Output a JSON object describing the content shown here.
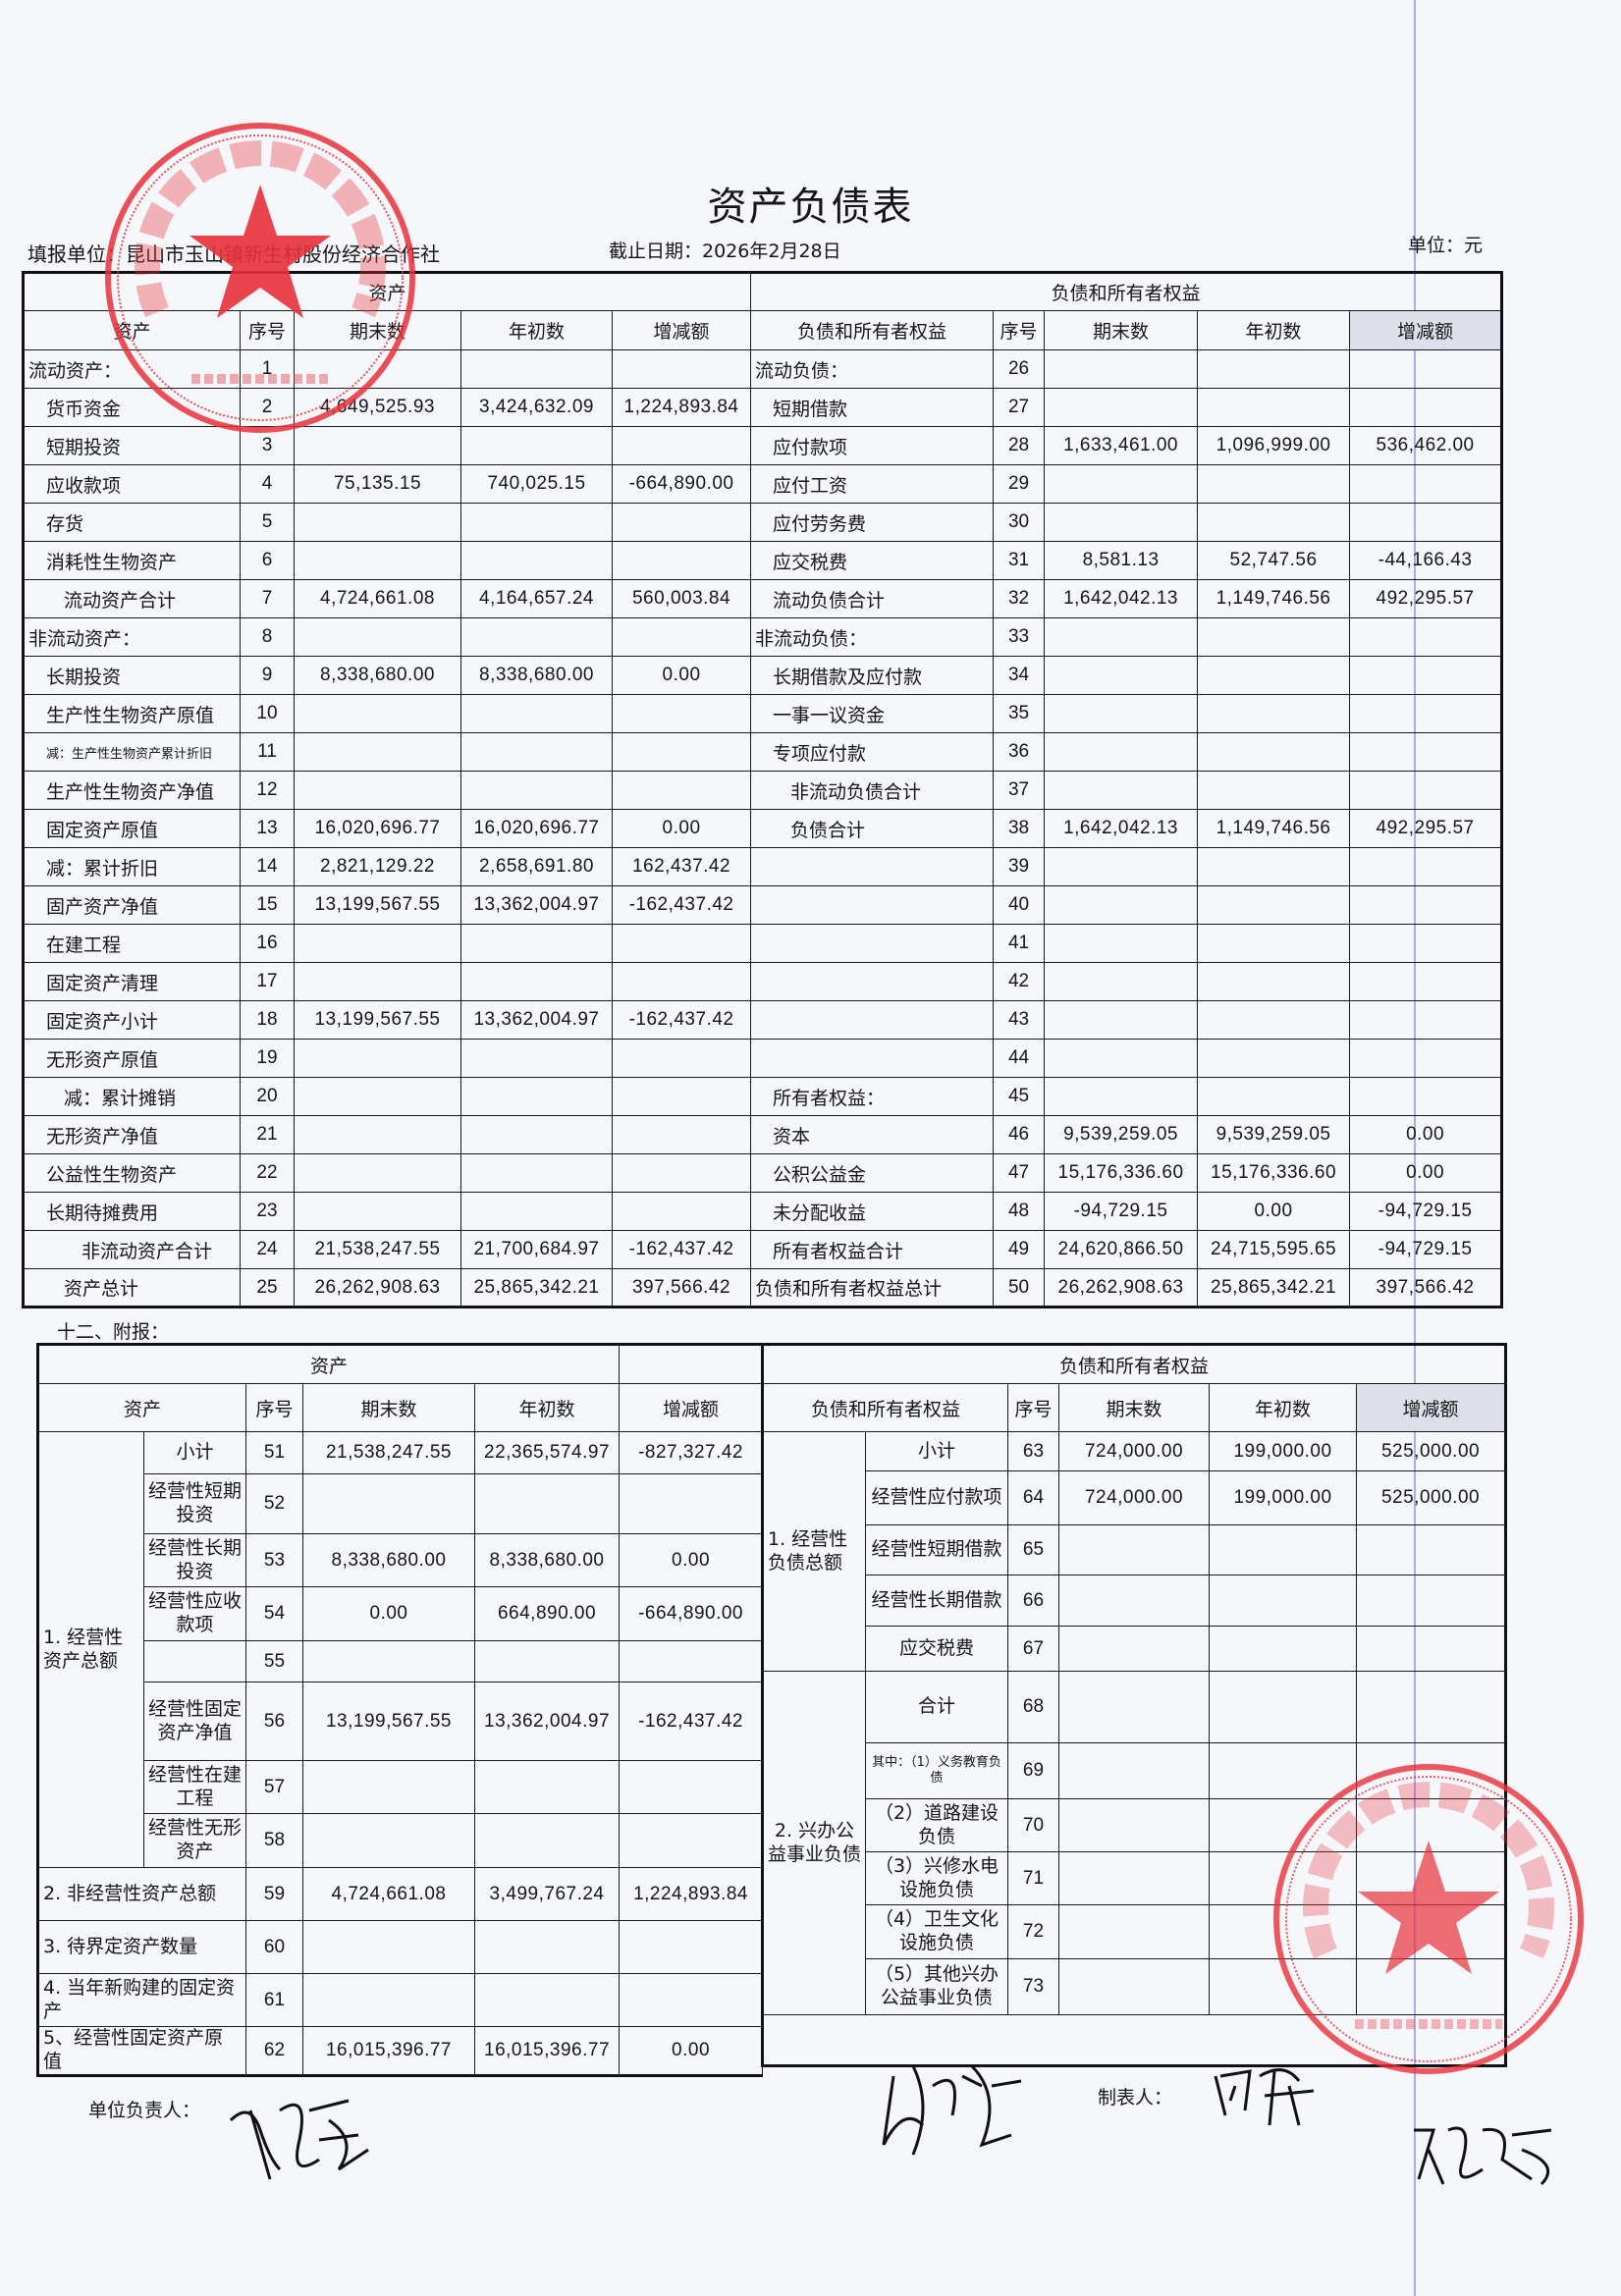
{
  "title": "资产负债表",
  "unit_label": "填报单位：昆山市玉山镇新生村股份经济合作社",
  "date_label": "截止日期：2026年2月28日",
  "currency_label": "单位：元",
  "main": {
    "assets_header": "资产",
    "liab_header": "负债和所有者权益",
    "col_headers": {
      "asset": "资产",
      "seq": "序号",
      "end": "期末数",
      "begin": "年初数",
      "change": "增减额",
      "liab": "负债和所有者权益"
    },
    "rows": [
      {
        "asset": "流动资产：",
        "seq": "1",
        "end": "",
        "begin": "",
        "change": "",
        "liab": "流动负债：",
        "lseq": "26",
        "lend": "",
        "lbegin": "",
        "lchange": ""
      },
      {
        "asset": "货币资金",
        "seq": "2",
        "end": "4,649,525.93",
        "begin": "3,424,632.09",
        "change": "1,224,893.84",
        "liab": "短期借款",
        "lseq": "27",
        "lend": "",
        "lbegin": "",
        "lchange": ""
      },
      {
        "asset": "短期投资",
        "seq": "3",
        "end": "",
        "begin": "",
        "change": "",
        "liab": "应付款项",
        "lseq": "28",
        "lend": "1,633,461.00",
        "lbegin": "1,096,999.00",
        "lchange": "536,462.00"
      },
      {
        "asset": "应收款项",
        "seq": "4",
        "end": "75,135.15",
        "begin": "740,025.15",
        "change": "-664,890.00",
        "liab": "应付工资",
        "lseq": "29",
        "lend": "",
        "lbegin": "",
        "lchange": ""
      },
      {
        "asset": "存货",
        "seq": "5",
        "end": "",
        "begin": "",
        "change": "",
        "liab": "应付劳务费",
        "lseq": "30",
        "lend": "",
        "lbegin": "",
        "lchange": ""
      },
      {
        "asset": "消耗性生物资产",
        "seq": "6",
        "end": "",
        "begin": "",
        "change": "",
        "liab": "应交税费",
        "lseq": "31",
        "lend": "8,581.13",
        "lbegin": "52,747.56",
        "lchange": "-44,166.43"
      },
      {
        "asset": "流动资产合计",
        "seq": "7",
        "end": "4,724,661.08",
        "begin": "4,164,657.24",
        "change": "560,003.84",
        "liab": "流动负债合计",
        "lseq": "32",
        "lend": "1,642,042.13",
        "lbegin": "1,149,746.56",
        "lchange": "492,295.57"
      },
      {
        "asset": "非流动资产：",
        "seq": "8",
        "end": "",
        "begin": "",
        "change": "",
        "liab": "非流动负债：",
        "lseq": "33",
        "lend": "",
        "lbegin": "",
        "lchange": ""
      },
      {
        "asset": "长期投资",
        "seq": "9",
        "end": "8,338,680.00",
        "begin": "8,338,680.00",
        "change": "0.00",
        "liab": "长期借款及应付款",
        "lseq": "34",
        "lend": "",
        "lbegin": "",
        "lchange": ""
      },
      {
        "asset": "生产性生物资产原值",
        "seq": "10",
        "end": "",
        "begin": "",
        "change": "",
        "liab": "一事一议资金",
        "lseq": "35",
        "lend": "",
        "lbegin": "",
        "lchange": ""
      },
      {
        "asset": "减：生产性生物资产累计折旧",
        "seq": "11",
        "end": "",
        "begin": "",
        "change": "",
        "liab": "专项应付款",
        "lseq": "36",
        "lend": "",
        "lbegin": "",
        "lchange": ""
      },
      {
        "asset": "生产性生物资产净值",
        "seq": "12",
        "end": "",
        "begin": "",
        "change": "",
        "liab": "非流动负债合计",
        "lseq": "37",
        "lend": "",
        "lbegin": "",
        "lchange": ""
      },
      {
        "asset": "固定资产原值",
        "seq": "13",
        "end": "16,020,696.77",
        "begin": "16,020,696.77",
        "change": "0.00",
        "liab": "负债合计",
        "lseq": "38",
        "lend": "1,642,042.13",
        "lbegin": "1,149,746.56",
        "lchange": "492,295.57"
      },
      {
        "asset": "减：累计折旧",
        "seq": "14",
        "end": "2,821,129.22",
        "begin": "2,658,691.80",
        "change": "162,437.42",
        "liab": "",
        "lseq": "39",
        "lend": "",
        "lbegin": "",
        "lchange": ""
      },
      {
        "asset": "固产资产净值",
        "seq": "15",
        "end": "13,199,567.55",
        "begin": "13,362,004.97",
        "change": "-162,437.42",
        "liab": "",
        "lseq": "40",
        "lend": "",
        "lbegin": "",
        "lchange": ""
      },
      {
        "asset": "在建工程",
        "seq": "16",
        "end": "",
        "begin": "",
        "change": "",
        "liab": "",
        "lseq": "41",
        "lend": "",
        "lbegin": "",
        "lchange": ""
      },
      {
        "asset": "固定资产清理",
        "seq": "17",
        "end": "",
        "begin": "",
        "change": "",
        "liab": "",
        "lseq": "42",
        "lend": "",
        "lbegin": "",
        "lchange": ""
      },
      {
        "asset": "固定资产小计",
        "seq": "18",
        "end": "13,199,567.55",
        "begin": "13,362,004.97",
        "change": "-162,437.42",
        "liab": "",
        "lseq": "43",
        "lend": "",
        "lbegin": "",
        "lchange": ""
      },
      {
        "asset": "无形资产原值",
        "seq": "19",
        "end": "",
        "begin": "",
        "change": "",
        "liab": "",
        "lseq": "44",
        "lend": "",
        "lbegin": "",
        "lchange": ""
      },
      {
        "asset": "减：累计摊销",
        "seq": "20",
        "end": "",
        "begin": "",
        "change": "",
        "liab": "所有者权益：",
        "lseq": "45",
        "lend": "",
        "lbegin": "",
        "lchange": ""
      },
      {
        "asset": "无形资产净值",
        "seq": "21",
        "end": "",
        "begin": "",
        "change": "",
        "liab": "资本",
        "lseq": "46",
        "lend": "9,539,259.05",
        "lbegin": "9,539,259.05",
        "lchange": "0.00"
      },
      {
        "asset": "公益性生物资产",
        "seq": "22",
        "end": "",
        "begin": "",
        "change": "",
        "liab": "公积公益金",
        "lseq": "47",
        "lend": "15,176,336.60",
        "lbegin": "15,176,336.60",
        "lchange": "0.00"
      },
      {
        "asset": "长期待摊费用",
        "seq": "23",
        "end": "",
        "begin": "",
        "change": "",
        "liab": "未分配收益",
        "lseq": "48",
        "lend": "-94,729.15",
        "lbegin": "0.00",
        "lchange": "-94,729.15"
      },
      {
        "asset": "非流动资产合计",
        "seq": "24",
        "end": "21,538,247.55",
        "begin": "21,700,684.97",
        "change": "-162,437.42",
        "liab": "所有者权益合计",
        "lseq": "49",
        "lend": "24,620,866.50",
        "lbegin": "24,715,595.65",
        "lchange": "-94,729.15"
      },
      {
        "asset": "资产总计",
        "seq": "25",
        "end": "26,262,908.63",
        "begin": "25,865,342.21",
        "change": "397,566.42",
        "liab": "负债和所有者权益总计",
        "lseq": "50",
        "lend": "26,262,908.63",
        "lbegin": "25,865,342.21",
        "lchange": "397,566.42"
      }
    ]
  },
  "annex": {
    "caption": "十二、附报：",
    "assets_header": "资产",
    "liab_header": "负债和所有者权益",
    "col_headers": {
      "asset": "资产",
      "seq": "序号",
      "end": "期末数",
      "begin": "年初数",
      "change": "增减额",
      "liab": "负债和所有者权益"
    },
    "asset_group_1": "1. 经营性资产总额",
    "asset_rows": [
      {
        "label": "小计",
        "seq": "51",
        "end": "21,538,247.55",
        "begin": "22,365,574.97",
        "change": "-827,327.42"
      },
      {
        "label": "经营性短期投资",
        "seq": "52",
        "end": "",
        "begin": "",
        "change": ""
      },
      {
        "label": "经营性长期投资",
        "seq": "53",
        "end": "8,338,680.00",
        "begin": "8,338,680.00",
        "change": "0.00"
      },
      {
        "label": "经营性应收款项",
        "seq": "54",
        "end": "0.00",
        "begin": "664,890.00",
        "change": "-664,890.00"
      },
      {
        "label": "",
        "seq": "55",
        "end": "",
        "begin": "",
        "change": ""
      },
      {
        "label": "经营性固定资产净值",
        "seq": "56",
        "end": "13,199,567.55",
        "begin": "13,362,004.97",
        "change": "-162,437.42"
      },
      {
        "label": "经营性在建工程",
        "seq": "57",
        "end": "",
        "begin": "",
        "change": ""
      },
      {
        "label": "经营性无形资产",
        "seq": "58",
        "end": "",
        "begin": "",
        "change": ""
      },
      {
        "label": "2. 非经营性资产总额",
        "seq": "59",
        "end": "4,724,661.08",
        "begin": "3,499,767.24",
        "change": "1,224,893.84"
      },
      {
        "label": "3. 待界定资产数量",
        "seq": "60",
        "end": "",
        "begin": "",
        "change": ""
      },
      {
        "label": "4. 当年新购建的固定资产",
        "seq": "61",
        "end": "",
        "begin": "",
        "change": ""
      },
      {
        "label": "5、经营性固定资产原值",
        "seq": "62",
        "end": "16,015,396.77",
        "begin": "16,015,396.77",
        "change": "0.00"
      }
    ],
    "liab_group_1": "1. 经营性负债总额",
    "liab_group_2": "2. 兴办公益事业负债",
    "liab_rows": [
      {
        "label": "小计",
        "seq": "63",
        "end": "724,000.00",
        "begin": "199,000.00",
        "change": "525,000.00"
      },
      {
        "label": "经营性应付款项",
        "seq": "64",
        "end": "724,000.00",
        "begin": "199,000.00",
        "change": "525,000.00"
      },
      {
        "label": "经营性短期借款",
        "seq": "65",
        "end": "",
        "begin": "",
        "change": ""
      },
      {
        "label": "经营性长期借款",
        "seq": "66",
        "end": "",
        "begin": "",
        "change": ""
      },
      {
        "label": "应交税费",
        "seq": "67",
        "end": "",
        "begin": "",
        "change": ""
      },
      {
        "label": "合计",
        "seq": "68",
        "end": "",
        "begin": "",
        "change": ""
      },
      {
        "label": "其中：（1）义务教育负债",
        "seq": "69",
        "end": "",
        "begin": "",
        "change": ""
      },
      {
        "label": "（2）道路建设负债",
        "seq": "70",
        "end": "",
        "begin": "",
        "change": ""
      },
      {
        "label": "（3）兴修水电设施负债",
        "seq": "71",
        "end": "",
        "begin": "",
        "change": ""
      },
      {
        "label": "（4）卫生文化设施负债",
        "seq": "72",
        "end": "",
        "begin": "",
        "change": ""
      },
      {
        "label": "（5）其他兴办公益事业负债",
        "seq": "73",
        "end": "",
        "begin": "",
        "change": ""
      }
    ]
  },
  "footer": {
    "unit_head_label": "单位负责人：",
    "preparer_label": "制表人："
  },
  "stamps": [
    {
      "text": "昆山市玉山镇新生村股份经济合作社",
      "code": "320583094362",
      "color": "#e8303a"
    },
    {
      "text": "昆山市玉山镇新生村村务监督委员会",
      "code": "3205830514695",
      "color": "#e8303a"
    }
  ],
  "colors": {
    "ink": "#151515",
    "stamp": "#e8303a",
    "header_gray": "#dde0ea",
    "paper": "#f6f7fb"
  }
}
